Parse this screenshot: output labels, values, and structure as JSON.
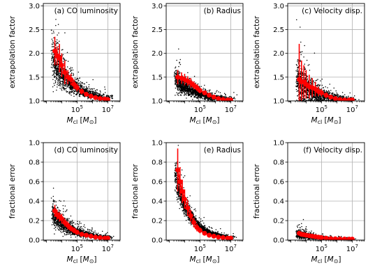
{
  "chart_data": [
    {
      "type": "scatter",
      "title": "(a) CO luminosity",
      "xlabel": "M_cl [M_⊙]",
      "ylabel": "extrapolation factor",
      "xscale": "log",
      "xlim_log10": [
        2.8,
        7.8
      ],
      "ylim": [
        1.0,
        3.05
      ],
      "xticks": [
        "10^5",
        "10^7"
      ],
      "yticks": [
        "1.0",
        "1.5",
        "2.0",
        "2.5",
        "3.0"
      ],
      "grid": true,
      "cloud": {
        "log10_x_range": [
          3.3,
          7.5
        ],
        "center_start": 2.0,
        "center_end": 1.04,
        "decay": 0.85,
        "spread_start": 0.45,
        "spread_end": 0.03
      },
      "series": [
        {
          "kind": "median",
          "color": "#ff0000",
          "log10_x": [
            3.55,
            3.7,
            3.85,
            4.0,
            4.2,
            4.4,
            4.6,
            4.8,
            5.0,
            5.3,
            5.6,
            5.9,
            6.2,
            6.5,
            6.8,
            7.0
          ],
          "y": [
            2.05,
            1.95,
            1.9,
            1.75,
            1.6,
            1.5,
            1.45,
            1.35,
            1.28,
            1.2,
            1.14,
            1.1,
            1.07,
            1.05,
            1.04,
            1.03
          ],
          "err": [
            0.3,
            0.2,
            0.3,
            0.25,
            0.25,
            0.15,
            0.12,
            0.1,
            0.08,
            0.06,
            0.04,
            0.03,
            0.02,
            0.02,
            0.01,
            0.01
          ]
        }
      ]
    },
    {
      "type": "scatter",
      "title": "(b) Radius",
      "xlabel": "M_cl [M_⊙]",
      "ylabel": "extrapolation factor",
      "xscale": "log",
      "xlim_log10": [
        2.8,
        7.8
      ],
      "ylim": [
        1.0,
        3.05
      ],
      "xticks": [
        "10^5",
        "10^7"
      ],
      "yticks": [
        "1.0",
        "1.5",
        "2.0",
        "2.5",
        "3.0"
      ],
      "grid": true,
      "cloud": {
        "log10_x_range": [
          3.3,
          7.5
        ],
        "center_start": 1.5,
        "center_end": 1.02,
        "decay": 0.8,
        "spread_start": 0.2,
        "spread_end": 0.03
      },
      "series": [
        {
          "kind": "median",
          "color": "#ff0000",
          "log10_x": [
            3.55,
            3.8,
            4.0,
            4.2,
            4.4,
            4.6,
            4.8,
            5.0,
            5.3,
            5.6,
            5.9,
            6.2,
            6.5,
            6.8,
            7.0
          ],
          "y": [
            1.5,
            1.48,
            1.45,
            1.42,
            1.38,
            1.33,
            1.28,
            1.22,
            1.17,
            1.12,
            1.08,
            1.05,
            1.03,
            1.02,
            1.02
          ],
          "err": [
            0.15,
            0.12,
            0.12,
            0.1,
            0.1,
            0.08,
            0.07,
            0.06,
            0.05,
            0.04,
            0.03,
            0.02,
            0.02,
            0.01,
            0.01
          ]
        }
      ]
    },
    {
      "type": "scatter",
      "title": "(c) Velocity disp.",
      "xlabel": "M_cl [M_⊙]",
      "ylabel": "extrapolation factor",
      "xscale": "log",
      "xlim_log10": [
        2.8,
        7.8
      ],
      "ylim": [
        1.0,
        3.05
      ],
      "xticks": [
        "10^5",
        "10^7"
      ],
      "yticks": [
        "1.0",
        "1.5",
        "2.0",
        "2.5",
        "3.0"
      ],
      "grid": true,
      "cloud": {
        "log10_x_range": [
          3.3,
          7.5
        ],
        "center_start": 1.45,
        "center_end": 1.02,
        "decay": 0.9,
        "spread_start": 0.45,
        "spread_end": 0.03
      },
      "series": [
        {
          "kind": "median",
          "color": "#ff0000",
          "log10_x": [
            3.55,
            3.7,
            3.85,
            4.0,
            4.2,
            4.4,
            4.6,
            4.8,
            5.0,
            5.3,
            5.6,
            5.9,
            6.2,
            6.5,
            6.8,
            7.0
          ],
          "y": [
            1.45,
            1.4,
            1.4,
            1.35,
            1.3,
            1.28,
            1.25,
            1.2,
            1.17,
            1.12,
            1.08,
            1.05,
            1.03,
            1.02,
            1.02,
            1.02
          ],
          "err": [
            0.75,
            0.45,
            0.35,
            0.3,
            0.25,
            0.2,
            0.15,
            0.1,
            0.08,
            0.06,
            0.04,
            0.03,
            0.02,
            0.01,
            0.01,
            0.01
          ]
        }
      ]
    },
    {
      "type": "scatter",
      "title": "(d) CO luminosity",
      "xlabel": "M_cl [M_⊙]",
      "ylabel": "fractional error",
      "xscale": "log",
      "xlim_log10": [
        2.8,
        7.8
      ],
      "ylim": [
        0.0,
        1.0
      ],
      "xticks": [
        "10^5",
        "10^7"
      ],
      "yticks": [
        "0.0",
        "0.2",
        "0.4",
        "0.6",
        "0.8",
        "1.0"
      ],
      "grid": true,
      "cloud": {
        "log10_x_range": [
          3.3,
          7.5
        ],
        "center_start": 0.3,
        "center_end": 0.02,
        "decay": 0.85,
        "spread_start": 0.12,
        "spread_end": 0.01
      },
      "series": [
        {
          "kind": "median",
          "color": "#ff0000",
          "log10_x": [
            3.55,
            3.7,
            3.85,
            4.0,
            4.2,
            4.4,
            4.6,
            4.8,
            5.0,
            5.3,
            5.6,
            5.9,
            6.2,
            6.5,
            6.8,
            7.0
          ],
          "y": [
            0.3,
            0.26,
            0.24,
            0.22,
            0.18,
            0.15,
            0.12,
            0.1,
            0.08,
            0.06,
            0.05,
            0.04,
            0.03,
            0.025,
            0.02,
            0.02
          ],
          "err": [
            0.06,
            0.05,
            0.05,
            0.05,
            0.04,
            0.04,
            0.03,
            0.03,
            0.02,
            0.02,
            0.01,
            0.01,
            0.01,
            0.01,
            0.01,
            0.01
          ]
        }
      ]
    },
    {
      "type": "scatter",
      "title": "(e) Radius",
      "xlabel": "M_cl [M_⊙]",
      "ylabel": "fractional error",
      "xscale": "log",
      "xlim_log10": [
        2.8,
        7.8
      ],
      "ylim": [
        0.0,
        1.0
      ],
      "xticks": [
        "10^5",
        "10^7"
      ],
      "yticks": [
        "0.0",
        "0.2",
        "0.4",
        "0.6",
        "0.8",
        "1.0"
      ],
      "grid": true,
      "cloud": {
        "log10_x_range": [
          3.3,
          7.5
        ],
        "center_start": 0.72,
        "center_end": 0.02,
        "decay": 1.05,
        "spread_start": 0.15,
        "spread_end": 0.01
      },
      "series": [
        {
          "kind": "median",
          "color": "#ff0000",
          "log10_x": [
            3.55,
            3.7,
            3.85,
            4.0,
            4.2,
            4.4,
            4.6,
            4.8,
            5.0,
            5.3,
            5.6,
            5.9,
            6.2,
            6.5,
            6.8,
            7.0
          ],
          "y": [
            0.72,
            0.6,
            0.5,
            0.42,
            0.33,
            0.25,
            0.18,
            0.13,
            0.1,
            0.07,
            0.05,
            0.04,
            0.03,
            0.025,
            0.02,
            0.02
          ],
          "err": [
            0.22,
            0.15,
            0.12,
            0.1,
            0.08,
            0.06,
            0.05,
            0.04,
            0.03,
            0.02,
            0.02,
            0.01,
            0.01,
            0.01,
            0.01,
            0.01
          ]
        }
      ]
    },
    {
      "type": "scatter",
      "title": "(f) Velocity disp.",
      "xlabel": "M_cl [M_⊙]",
      "ylabel": "fractional error",
      "xscale": "log",
      "xlim_log10": [
        2.8,
        7.8
      ],
      "ylim": [
        0.0,
        1.0
      ],
      "xticks": [
        "10^5",
        "10^7"
      ],
      "yticks": [
        "0.0",
        "0.2",
        "0.4",
        "0.6",
        "0.8",
        "1.0"
      ],
      "grid": true,
      "cloud": {
        "log10_x_range": [
          3.3,
          7.5
        ],
        "center_start": 0.07,
        "center_end": 0.01,
        "decay": 0.9,
        "spread_start": 0.04,
        "spread_end": 0.005
      },
      "series": [
        {
          "kind": "median",
          "color": "#ff0000",
          "log10_x": [
            3.55,
            3.7,
            3.85,
            4.0,
            4.2,
            4.4,
            4.6,
            4.8,
            5.0,
            5.3,
            5.6,
            5.9,
            6.2,
            6.5,
            6.8,
            7.0
          ],
          "y": [
            0.07,
            0.06,
            0.055,
            0.05,
            0.045,
            0.04,
            0.035,
            0.03,
            0.025,
            0.02,
            0.015,
            0.013,
            0.012,
            0.011,
            0.01,
            0.01
          ],
          "err": [
            0.02,
            0.02,
            0.015,
            0.015,
            0.01,
            0.01,
            0.01,
            0.01,
            0.005,
            0.005,
            0.005,
            0.005,
            0.005,
            0.005,
            0.005,
            0.005
          ]
        }
      ]
    }
  ]
}
